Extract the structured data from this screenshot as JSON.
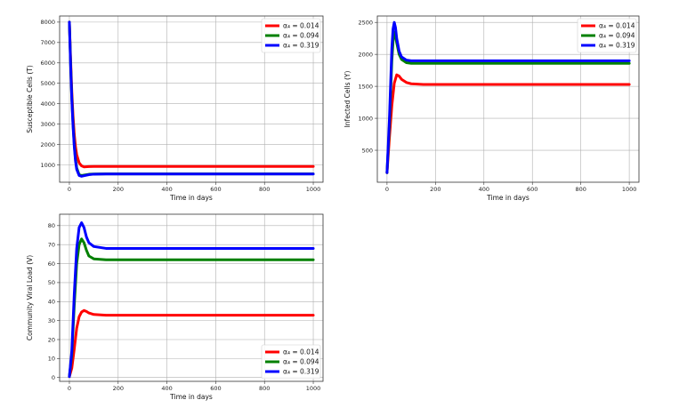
{
  "chart_data": [
    {
      "type": "line",
      "xlabel": "Time in days",
      "ylabel": "Susceptible Cells (T)",
      "xlim": [
        -40,
        1040
      ],
      "ylim": [
        150,
        8300
      ],
      "xticks": [
        0,
        200,
        400,
        600,
        800,
        1000
      ],
      "yticks": [
        1000,
        2000,
        3000,
        4000,
        5000,
        6000,
        7000,
        8000
      ],
      "grid": true,
      "legend_position": "top-right",
      "series": [
        {
          "name": "α₄ = 0.014",
          "color": "#ff0000",
          "x": [
            0,
            5,
            10,
            15,
            20,
            25,
            30,
            40,
            50,
            60,
            80,
            100,
            150,
            200,
            400,
            600,
            800,
            1000
          ],
          "y": [
            8000,
            6200,
            4600,
            3400,
            2500,
            1900,
            1500,
            1100,
            950,
            900,
            920,
            925,
            925,
            925,
            925,
            925,
            925,
            925
          ]
        },
        {
          "name": "α₄ = 0.094",
          "color": "#008000",
          "x": [
            0,
            5,
            10,
            15,
            20,
            25,
            30,
            40,
            50,
            60,
            80,
            100,
            150,
            200,
            400,
            600,
            800,
            1000
          ],
          "y": [
            8000,
            6000,
            4300,
            3000,
            2000,
            1300,
            850,
            520,
            480,
            500,
            540,
            555,
            560,
            560,
            560,
            560,
            560,
            560
          ]
        },
        {
          "name": "α₄ = 0.319",
          "color": "#0000ff",
          "x": [
            0,
            5,
            10,
            15,
            20,
            25,
            30,
            40,
            50,
            60,
            80,
            100,
            150,
            200,
            400,
            600,
            800,
            1000
          ],
          "y": [
            8000,
            5900,
            4200,
            2900,
            1900,
            1200,
            780,
            480,
            440,
            470,
            520,
            545,
            555,
            555,
            555,
            555,
            555,
            555
          ]
        }
      ]
    },
    {
      "type": "line",
      "xlabel": "Time in days",
      "ylabel": "Infected Cells (Y)",
      "xlim": [
        -40,
        1040
      ],
      "ylim": [
        0,
        2600
      ],
      "xticks": [
        0,
        200,
        400,
        600,
        800,
        1000
      ],
      "yticks": [
        500,
        1000,
        1500,
        2000,
        2500
      ],
      "grid": true,
      "legend_position": "top-right",
      "series": [
        {
          "name": "α₄ = 0.014",
          "color": "#ff0000",
          "x": [
            0,
            10,
            20,
            30,
            40,
            50,
            60,
            80,
            100,
            150,
            200,
            400,
            600,
            800,
            1000
          ],
          "y": [
            150,
            700,
            1200,
            1550,
            1680,
            1660,
            1610,
            1560,
            1540,
            1530,
            1530,
            1530,
            1530,
            1530,
            1530
          ]
        },
        {
          "name": "α₄ = 0.094",
          "color": "#008000",
          "x": [
            0,
            10,
            20,
            25,
            30,
            35,
            40,
            50,
            60,
            80,
            100,
            150,
            200,
            400,
            600,
            800,
            1000
          ],
          "y": [
            150,
            900,
            1900,
            2200,
            2350,
            2300,
            2180,
            2000,
            1920,
            1870,
            1860,
            1860,
            1860,
            1860,
            1860,
            1860,
            1860
          ]
        },
        {
          "name": "α₄ = 0.319",
          "color": "#0000ff",
          "x": [
            0,
            10,
            20,
            25,
            30,
            35,
            40,
            50,
            60,
            80,
            100,
            150,
            200,
            400,
            600,
            800,
            1000
          ],
          "y": [
            150,
            1000,
            2100,
            2400,
            2500,
            2420,
            2250,
            2050,
            1960,
            1910,
            1900,
            1900,
            1900,
            1900,
            1900,
            1900,
            1900
          ]
        }
      ]
    },
    {
      "type": "line",
      "xlabel": "Time in days",
      "ylabel": "Community Viral Load (V)",
      "xlim": [
        -40,
        1040
      ],
      "ylim": [
        -2,
        86
      ],
      "xticks": [
        0,
        200,
        400,
        600,
        800,
        1000
      ],
      "yticks": [
        0,
        10,
        20,
        30,
        40,
        50,
        60,
        70,
        80
      ],
      "grid": true,
      "legend_position": "bottom-right",
      "series": [
        {
          "name": "α₄ = 0.014",
          "color": "#ff0000",
          "x": [
            0,
            10,
            20,
            30,
            40,
            50,
            60,
            70,
            80,
            100,
            150,
            200,
            400,
            600,
            800,
            1000
          ],
          "y": [
            0.5,
            5,
            15,
            26,
            32,
            34.5,
            35.3,
            34.8,
            34,
            33.2,
            32.8,
            32.8,
            32.8,
            32.8,
            32.8,
            32.8
          ]
        },
        {
          "name": "α₄ = 0.094",
          "color": "#008000",
          "x": [
            0,
            10,
            20,
            30,
            40,
            50,
            60,
            70,
            80,
            100,
            150,
            200,
            400,
            600,
            800,
            1000
          ],
          "y": [
            0.5,
            12,
            38,
            60,
            70,
            73,
            71,
            67,
            64,
            62.5,
            62,
            62,
            62,
            62,
            62,
            62
          ]
        },
        {
          "name": "α₄ = 0.319",
          "color": "#0000ff",
          "x": [
            0,
            10,
            20,
            30,
            40,
            50,
            60,
            70,
            80,
            100,
            150,
            200,
            400,
            600,
            800,
            1000
          ],
          "y": [
            0.5,
            14,
            44,
            68,
            79,
            81.5,
            79,
            74,
            71,
            69,
            68,
            68,
            68,
            68,
            68,
            68
          ]
        }
      ]
    }
  ]
}
